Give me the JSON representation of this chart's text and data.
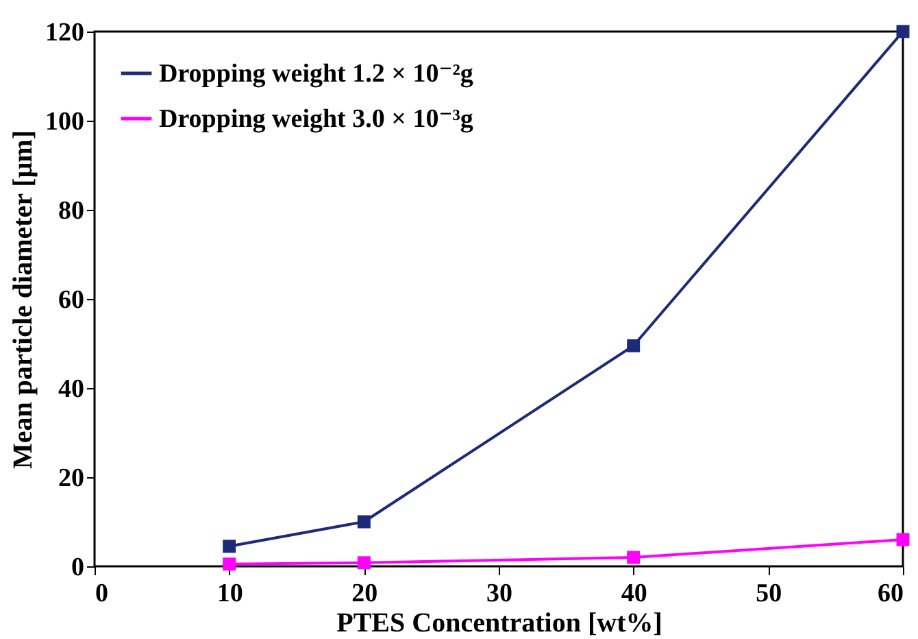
{
  "chart_data": {
    "type": "line",
    "xlabel": "PTES Concentration [wt%]",
    "ylabel": "Mean particle diameter [μm]",
    "x": [
      10,
      20,
      40,
      60
    ],
    "series": [
      {
        "name": "Dropping weight 1.2 × 10⁻²g",
        "color": "#1c2a78",
        "values": [
          4.5,
          10,
          49.5,
          120
        ]
      },
      {
        "name": "Dropping weight 3.0 × 10⁻³g",
        "color": "#ff00ff",
        "values": [
          0.5,
          0.8,
          2,
          6
        ]
      }
    ],
    "xlim": [
      0,
      60
    ],
    "xticks": [
      0,
      10,
      20,
      30,
      40,
      50,
      60
    ],
    "ylim": [
      0,
      120
    ],
    "yticks": [
      0,
      20,
      40,
      60,
      80,
      100,
      120
    ],
    "marker": "square",
    "legend": "top left",
    "grid": false
  }
}
